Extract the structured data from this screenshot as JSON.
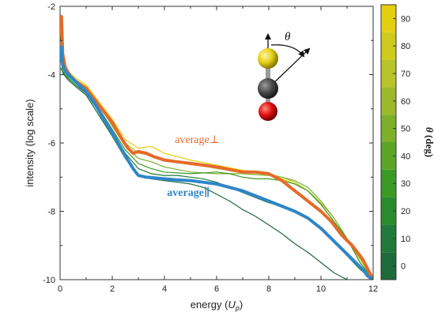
{
  "chart_data": {
    "type": "line",
    "xlabel_main": "energy (",
    "xlabel_var": "U",
    "xlabel_sub": "p",
    "xlabel_close": ")",
    "ylabel": "intensity (log scale)",
    "xlim": [
      0,
      12
    ],
    "ylim": [
      -10,
      -2
    ],
    "xticks": [
      "0",
      "2",
      "4",
      "6",
      "8",
      "10",
      "12"
    ],
    "yticks": [
      "-2",
      "-4",
      "-6",
      "-8",
      "-10"
    ],
    "grid": false,
    "colorbar": {
      "label_symbol": "θ",
      "label_unit": "(deg)",
      "range": [
        -5,
        95
      ],
      "ticks": [
        "0",
        "10",
        "20",
        "30",
        "40",
        "50",
        "60",
        "70",
        "80",
        "90"
      ],
      "colors": [
        "#1e6a3a",
        "#21793a",
        "#2a8a2e",
        "#3a9a24",
        "#5aa526",
        "#7cb02a",
        "#9cb92c",
        "#b7c42a",
        "#cfcb1e",
        "#e4ce10"
      ]
    },
    "annotations": {
      "average_perp": "average⊥",
      "average_par": "average∥",
      "theta_symbol": "θ"
    },
    "series": [
      {
        "color": "#e56a2a",
        "x": [
          0,
          0.05,
          0.1,
          0.2,
          0.4,
          0.6,
          0.8,
          1.0,
          1.3,
          1.6,
          2.0,
          2.3,
          2.6,
          2.8,
          3.0,
          3.3,
          3.6,
          4.0,
          4.5,
          5.0,
          5.5,
          6.0,
          6.5,
          7.0,
          7.5,
          8.0,
          8.5,
          9.0,
          9.5,
          10.0,
          10.4,
          10.8,
          11.2,
          11.6,
          11.8,
          12.0
        ],
        "y": [
          -2.8,
          -2.3,
          -3.4,
          -3.8,
          -4.05,
          -4.2,
          -4.3,
          -4.4,
          -4.7,
          -5.0,
          -5.4,
          -5.8,
          -6.15,
          -6.3,
          -6.25,
          -6.3,
          -6.4,
          -6.5,
          -6.55,
          -6.6,
          -6.65,
          -6.7,
          -6.78,
          -6.85,
          -6.85,
          -6.9,
          -7.1,
          -7.4,
          -7.7,
          -8.0,
          -8.3,
          -8.7,
          -9.0,
          -9.4,
          -9.7,
          -10.0
        ]
      },
      {
        "color": "#2f86c8",
        "x": [
          0,
          0.05,
          0.1,
          0.2,
          0.4,
          0.6,
          0.8,
          1.0,
          1.3,
          1.6,
          2.0,
          2.3,
          2.6,
          2.8,
          3.0,
          3.3,
          3.6,
          4.0,
          4.5,
          5.0,
          5.5,
          6.0,
          6.5,
          7.0,
          7.5,
          8.0,
          8.5,
          9.0,
          9.5,
          10.0,
          10.4,
          10.8,
          11.2,
          11.6,
          11.8,
          12.0
        ],
        "y": [
          -3.6,
          -3.2,
          -3.7,
          -3.9,
          -4.05,
          -4.2,
          -4.35,
          -4.5,
          -4.8,
          -5.2,
          -5.7,
          -6.1,
          -6.5,
          -6.75,
          -6.95,
          -7.0,
          -7.02,
          -7.05,
          -7.08,
          -7.1,
          -7.15,
          -7.2,
          -7.3,
          -7.4,
          -7.55,
          -7.7,
          -7.85,
          -8.0,
          -8.2,
          -8.5,
          -8.8,
          -9.1,
          -9.4,
          -9.7,
          -9.9,
          -10.0
        ]
      },
      {
        "color": "#e4ce10",
        "x": [
          0,
          0.1,
          0.3,
          0.6,
          1.0,
          1.5,
          2.0,
          2.5,
          3.0,
          3.5,
          4.0,
          5.0,
          6.0,
          7.0,
          8.0,
          8.5,
          9.0,
          9.5,
          10.0,
          10.5,
          11.0,
          11.5,
          12.0
        ],
        "y": [
          -2.6,
          -3.6,
          -3.9,
          -4.1,
          -4.3,
          -4.8,
          -5.3,
          -5.9,
          -6.15,
          -6.1,
          -6.3,
          -6.5,
          -6.65,
          -6.8,
          -6.9,
          -7.05,
          -7.2,
          -7.4,
          -7.8,
          -8.3,
          -8.8,
          -9.4,
          -10.0
        ]
      },
      {
        "color": "#b7c42a",
        "x": [
          0,
          0.1,
          0.3,
          0.6,
          1.0,
          1.5,
          2.0,
          2.5,
          3.0,
          3.5,
          4.0,
          5.0,
          6.0,
          7.0,
          8.0,
          8.5,
          9.0,
          9.5,
          10.0,
          10.5,
          11.0,
          11.5,
          12.0
        ],
        "y": [
          -2.5,
          -3.5,
          -3.95,
          -4.15,
          -4.35,
          -4.85,
          -5.4,
          -6.0,
          -6.3,
          -6.35,
          -6.5,
          -6.6,
          -6.75,
          -6.85,
          -6.9,
          -7.0,
          -7.15,
          -7.4,
          -7.75,
          -8.2,
          -8.8,
          -9.4,
          -10.0
        ]
      },
      {
        "color": "#7cb02a",
        "x": [
          0,
          0.1,
          0.3,
          0.6,
          1.0,
          1.5,
          2.0,
          2.5,
          3.0,
          3.5,
          4.0,
          5.0,
          6.0,
          7.0,
          8.0,
          8.5,
          9.0,
          9.5,
          10.0,
          10.5,
          11.0,
          11.5,
          12.0
        ],
        "y": [
          -3.2,
          -3.7,
          -4.0,
          -4.2,
          -4.4,
          -4.9,
          -5.5,
          -6.1,
          -6.45,
          -6.55,
          -6.7,
          -6.85,
          -6.9,
          -6.9,
          -6.95,
          -7.0,
          -7.1,
          -7.3,
          -7.7,
          -8.2,
          -8.8,
          -9.5,
          -10.0
        ]
      },
      {
        "color": "#3a9a24",
        "x": [
          0,
          0.1,
          0.3,
          0.6,
          1.0,
          1.5,
          2.0,
          2.5,
          3.0,
          3.5,
          4.0,
          5.0,
          6.0,
          6.5,
          7.0,
          7.5,
          8.0,
          8.5,
          9.0,
          9.5,
          10.0,
          10.5,
          11.0,
          11.5,
          12.0
        ],
        "y": [
          -3.5,
          -3.8,
          -4.05,
          -4.25,
          -4.45,
          -5.0,
          -5.6,
          -6.2,
          -6.6,
          -6.75,
          -6.85,
          -6.9,
          -6.85,
          -6.9,
          -7.0,
          -7.05,
          -7.05,
          -7.1,
          -7.2,
          -7.4,
          -7.8,
          -8.3,
          -8.8,
          -9.5,
          -10.0
        ]
      },
      {
        "color": "#21793a",
        "x": [
          0,
          0.1,
          0.3,
          0.6,
          1.0,
          1.5,
          2.0,
          2.5,
          3.0,
          3.5,
          4.0,
          4.5,
          5.0,
          5.5,
          6.0,
          6.5,
          7.0,
          7.5,
          8.0,
          8.5,
          9.0,
          9.5,
          10.0,
          10.5,
          11.0,
          11.5,
          12.0
        ],
        "y": [
          -3.8,
          -3.9,
          -4.1,
          -4.3,
          -4.55,
          -5.1,
          -5.7,
          -6.3,
          -6.75,
          -6.9,
          -6.95,
          -6.95,
          -7.0,
          -7.05,
          -7.15,
          -7.3,
          -7.45,
          -7.6,
          -7.75,
          -7.85,
          -8.0,
          -8.2,
          -8.5,
          -8.9,
          -9.3,
          -9.7,
          -10.0
        ]
      },
      {
        "color": "#1e6a3a",
        "x": [
          0,
          0.1,
          0.3,
          0.6,
          1.0,
          1.5,
          2.0,
          2.5,
          3.0,
          3.5,
          4.0,
          4.5,
          5.0,
          5.5,
          6.0,
          6.5,
          7.0,
          7.5,
          8.0,
          8.5,
          9.0,
          9.5,
          10.0,
          10.5,
          11.0
        ],
        "y": [
          -3.3,
          -3.95,
          -4.15,
          -4.35,
          -4.6,
          -5.2,
          -5.8,
          -6.45,
          -6.95,
          -7.05,
          -7.1,
          -7.15,
          -7.2,
          -7.3,
          -7.5,
          -7.7,
          -7.95,
          -8.15,
          -8.4,
          -8.65,
          -8.95,
          -9.2,
          -9.5,
          -9.8,
          -10.0
        ]
      }
    ]
  }
}
